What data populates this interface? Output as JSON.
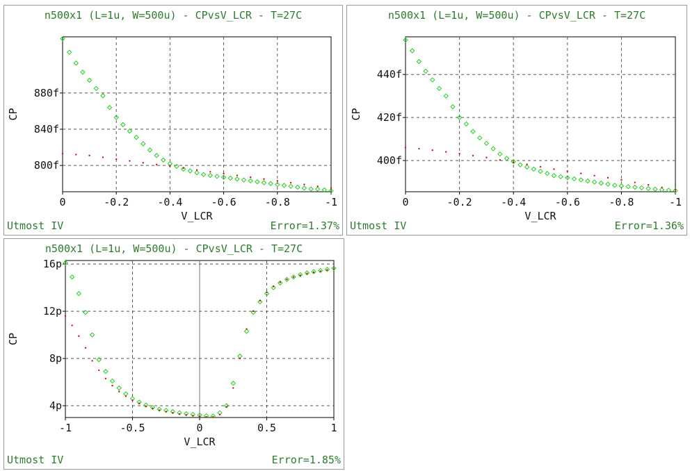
{
  "chart_data": [
    {
      "type": "scatter",
      "title": "n500x1 (L=1u, W=500u) - CPvsV_LCR - T=27C",
      "xlabel": "V_LCR",
      "ylabel": "CP",
      "footer_left": "Utmost IV",
      "footer_right": "Error=1.37%",
      "xlim": [
        0,
        -1
      ],
      "ylim": [
        771,
        942
      ],
      "xticks": [
        0,
        -0.2,
        -0.4,
        -0.6,
        -0.8,
        -1
      ],
      "xticklabels": [
        "0",
        "-0.2",
        "-0.4",
        "-0.6",
        "-0.8",
        "-1"
      ],
      "yticks": [
        800,
        840,
        880
      ],
      "yticklabels": [
        "800f",
        "840f",
        "880f"
      ],
      "grid": true,
      "series": [
        {
          "kind": "measured",
          "color": "#22cc22",
          "marker": "diamond",
          "x": [
            0,
            -0.025,
            -0.05,
            -0.075,
            -0.1,
            -0.125,
            -0.15,
            -0.175,
            -0.2,
            -0.225,
            -0.25,
            -0.275,
            -0.3,
            -0.325,
            -0.35,
            -0.375,
            -0.4,
            -0.425,
            -0.45,
            -0.475,
            -0.5,
            -0.525,
            -0.55,
            -0.575,
            -0.6,
            -0.625,
            -0.65,
            -0.675,
            -0.7,
            -0.725,
            -0.75,
            -0.775,
            -0.8,
            -0.825,
            -0.85,
            -0.875,
            -0.9,
            -0.925,
            -0.95,
            -0.975,
            -1
          ],
          "y": [
            940,
            925,
            913,
            903,
            894,
            885,
            877,
            864,
            853,
            845,
            838,
            831,
            824,
            817,
            811,
            806,
            802,
            799,
            796,
            794,
            792,
            790,
            789,
            788,
            787,
            786,
            785,
            784,
            783,
            782,
            781,
            780,
            779,
            778,
            777,
            776,
            775,
            774,
            774,
            773,
            772
          ]
        },
        {
          "kind": "simulated",
          "color": "#d11111",
          "marker": "dot",
          "x": [
            0,
            -0.05,
            -0.1,
            -0.15,
            -0.2,
            -0.25,
            -0.3,
            -0.35,
            -0.4,
            -0.45,
            -0.5,
            -0.55,
            -0.6,
            -0.65,
            -0.7,
            -0.75,
            -0.8,
            -0.85,
            -0.9,
            -0.95,
            -1
          ],
          "y": [
            813,
            812,
            811,
            809,
            807,
            805,
            803,
            801,
            799,
            797,
            795,
            793,
            791,
            789,
            787,
            785,
            783,
            781,
            779,
            777,
            775
          ]
        }
      ]
    },
    {
      "type": "scatter",
      "title": "n500x1 (L=1u, W=500u) - CPvsV_LCR - T=27C",
      "xlabel": "V_LCR",
      "ylabel": "CP",
      "footer_left": "Utmost IV",
      "footer_right": "Error=1.36%",
      "xlim": [
        0,
        -1
      ],
      "ylim": [
        385.5,
        457.5
      ],
      "xticks": [
        0,
        -0.2,
        -0.4,
        -0.6,
        -0.8,
        -1
      ],
      "xticklabels": [
        "0",
        "-0.2",
        "-0.4",
        "-0.6",
        "-0.8",
        "-1"
      ],
      "yticks": [
        400,
        420,
        440
      ],
      "yticklabels": [
        "400f",
        "420f",
        "440f"
      ],
      "grid": true,
      "series": [
        {
          "kind": "measured",
          "color": "#22cc22",
          "marker": "diamond",
          "x": [
            0,
            -0.025,
            -0.05,
            -0.075,
            -0.1,
            -0.125,
            -0.15,
            -0.175,
            -0.2,
            -0.225,
            -0.25,
            -0.275,
            -0.3,
            -0.325,
            -0.35,
            -0.375,
            -0.4,
            -0.425,
            -0.45,
            -0.475,
            -0.5,
            -0.525,
            -0.55,
            -0.575,
            -0.6,
            -0.625,
            -0.65,
            -0.675,
            -0.7,
            -0.725,
            -0.75,
            -0.775,
            -0.8,
            -0.825,
            -0.85,
            -0.875,
            -0.9,
            -0.925,
            -0.95,
            -0.975,
            -1
          ],
          "y": [
            456,
            451,
            446,
            441.5,
            437.5,
            433.5,
            430,
            425,
            420,
            417,
            413.5,
            410.5,
            408,
            405.5,
            403,
            401,
            399.5,
            398,
            397,
            396,
            395,
            394,
            393,
            392.5,
            392,
            391.5,
            391,
            390.5,
            390,
            389.5,
            389,
            388.5,
            388.2,
            387.9,
            387.6,
            387.3,
            387,
            386.7,
            386.4,
            386.2,
            386
          ]
        },
        {
          "kind": "simulated",
          "color": "#d11111",
          "marker": "dot",
          "x": [
            0,
            -0.05,
            -0.1,
            -0.15,
            -0.2,
            -0.25,
            -0.3,
            -0.35,
            -0.4,
            -0.45,
            -0.5,
            -0.55,
            -0.6,
            -0.65,
            -0.7,
            -0.75,
            -0.8,
            -0.85,
            -0.9,
            -0.95,
            -1
          ],
          "y": [
            406,
            405.5,
            404.8,
            404,
            403.2,
            402.3,
            401.4,
            400.3,
            399.2,
            398.2,
            397.1,
            396,
            395,
            394,
            393,
            392,
            391,
            389.8,
            388.7,
            387.5,
            386.5
          ]
        }
      ]
    },
    {
      "type": "scatter",
      "title": "n500x1 (L=1u, W=500u) - CPvsV_LCR - T=27C",
      "xlabel": "V_LCR",
      "ylabel": "CP",
      "footer_left": "Utmost IV",
      "footer_right": "Error=1.85%",
      "xlim": [
        -1,
        1
      ],
      "ylim": [
        3.0,
        16.3
      ],
      "xticks": [
        -1,
        -0.5,
        0,
        0.5,
        1
      ],
      "xticklabels": [
        "-1",
        "-0.5",
        "0",
        "0.5",
        "1"
      ],
      "yticks": [
        4,
        8,
        12,
        16
      ],
      "yticklabels": [
        "4p",
        "8p",
        "12p",
        "16p"
      ],
      "grid": true,
      "series": [
        {
          "kind": "measured",
          "color": "#22cc22",
          "marker": "diamond",
          "x": [
            -1,
            -0.95,
            -0.9,
            -0.85,
            -0.8,
            -0.75,
            -0.7,
            -0.65,
            -0.6,
            -0.55,
            -0.5,
            -0.45,
            -0.4,
            -0.35,
            -0.3,
            -0.25,
            -0.2,
            -0.15,
            -0.1,
            -0.05,
            0,
            0.05,
            0.1,
            0.15,
            0.2,
            0.25,
            0.3,
            0.35,
            0.4,
            0.45,
            0.5,
            0.55,
            0.6,
            0.65,
            0.7,
            0.75,
            0.8,
            0.85,
            0.9,
            0.95,
            1
          ],
          "y": [
            16.1,
            14.9,
            13.5,
            11.9,
            10.0,
            7.9,
            6.9,
            6.1,
            5.5,
            5.0,
            4.6,
            4.3,
            4.05,
            3.85,
            3.7,
            3.6,
            3.5,
            3.4,
            3.32,
            3.26,
            3.2,
            3.15,
            3.12,
            3.4,
            4.0,
            5.9,
            8.2,
            10.3,
            11.9,
            12.8,
            13.5,
            14.0,
            14.4,
            14.7,
            14.9,
            15.1,
            15.25,
            15.35,
            15.45,
            15.55,
            15.65
          ]
        },
        {
          "kind": "simulated",
          "color": "#d11111",
          "marker": "dot",
          "x": [
            -1,
            -0.95,
            -0.9,
            -0.85,
            -0.8,
            -0.75,
            -0.7,
            -0.65,
            -0.6,
            -0.55,
            -0.5,
            -0.45,
            -0.4,
            -0.35,
            -0.3,
            -0.25,
            -0.2,
            -0.15,
            -0.1,
            -0.05,
            0,
            0.05,
            0.1,
            0.15,
            0.2,
            0.25,
            0.3,
            0.35,
            0.4,
            0.45,
            0.5,
            0.55,
            0.6,
            0.65,
            0.7,
            0.75,
            0.8,
            0.85,
            0.9,
            0.95,
            1
          ],
          "y": [
            11.6,
            10.8,
            9.9,
            8.9,
            7.8,
            7.0,
            6.3,
            5.7,
            5.2,
            4.8,
            4.45,
            4.2,
            3.95,
            3.78,
            3.62,
            3.5,
            3.4,
            3.3,
            3.22,
            3.16,
            3.1,
            3.05,
            3.05,
            3.25,
            3.9,
            5.5,
            8.0,
            10.5,
            12.0,
            12.9,
            13.6,
            14.1,
            14.45,
            14.7,
            14.9,
            15.05,
            15.2,
            15.3,
            15.4,
            15.5,
            15.6
          ]
        }
      ]
    }
  ]
}
